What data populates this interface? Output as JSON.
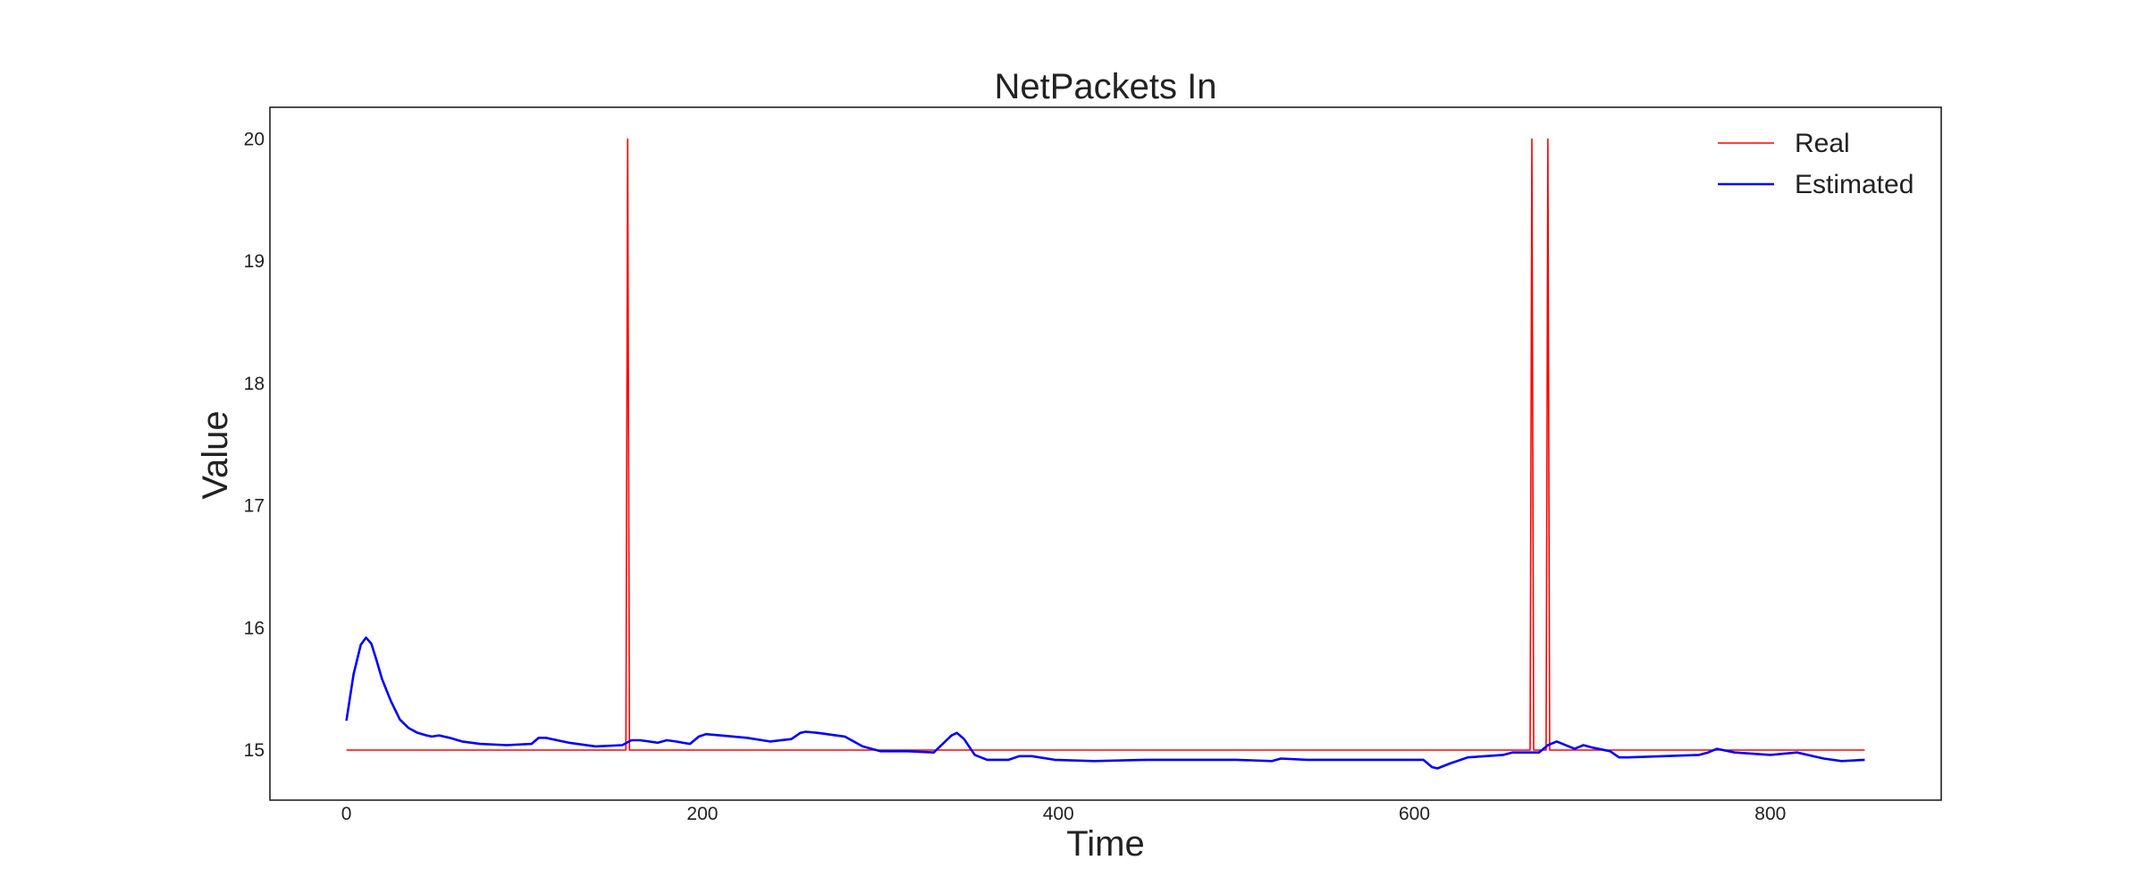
{
  "chart_data": {
    "type": "line",
    "title": "NetPackets In",
    "xlabel": "Time",
    "ylabel": "Value",
    "xlim": [
      -43,
      896
    ],
    "ylim": [
      14.59,
      20.26
    ],
    "xticks": [
      0,
      200,
      400,
      600,
      800
    ],
    "yticks": [
      15,
      16,
      17,
      18,
      19,
      20
    ],
    "grid": false,
    "legend_position": "top-right",
    "series": [
      {
        "name": "Real",
        "color": "#ff0000",
        "x": [
          0,
          157,
          158,
          159,
          665,
          666,
          667,
          674,
          675,
          676,
          853
        ],
        "y": [
          15,
          15,
          20,
          15,
          15,
          20,
          15,
          15,
          20,
          15,
          15
        ]
      },
      {
        "name": "Estimated",
        "color": "#0000ff",
        "x": [
          0,
          4,
          8,
          11,
          14,
          17,
          20,
          25,
          30,
          35,
          40,
          45,
          48,
          52,
          58,
          65,
          75,
          90,
          104,
          108,
          112,
          125,
          140,
          155,
          160,
          165,
          175,
          180,
          185,
          193,
          198,
          202,
          210,
          225,
          238,
          250,
          255,
          258,
          265,
          280,
          290,
          300,
          315,
          330,
          335,
          340,
          343,
          347,
          353,
          360,
          372,
          378,
          385,
          398,
          420,
          450,
          480,
          500,
          520,
          525,
          540,
          570,
          590,
          605,
          610,
          613,
          620,
          630,
          650,
          655,
          665,
          670,
          675,
          680,
          690,
          695,
          700,
          710,
          715,
          720,
          760,
          765,
          770,
          780,
          800,
          815,
          830,
          840,
          853
        ],
        "y": [
          15.24,
          15.62,
          15.86,
          15.92,
          15.87,
          15.73,
          15.58,
          15.4,
          15.25,
          15.18,
          15.14,
          15.12,
          15.11,
          15.12,
          15.1,
          15.07,
          15.05,
          15.04,
          15.05,
          15.1,
          15.1,
          15.06,
          15.03,
          15.04,
          15.08,
          15.08,
          15.06,
          15.08,
          15.07,
          15.05,
          15.11,
          15.13,
          15.12,
          15.1,
          15.07,
          15.09,
          15.14,
          15.15,
          15.14,
          15.11,
          15.03,
          14.99,
          14.99,
          14.98,
          15.05,
          15.12,
          15.14,
          15.09,
          14.96,
          14.92,
          14.92,
          14.95,
          14.95,
          14.92,
          14.91,
          14.92,
          14.92,
          14.92,
          14.91,
          14.93,
          14.92,
          14.92,
          14.92,
          14.92,
          14.86,
          14.85,
          14.89,
          14.94,
          14.96,
          14.98,
          14.98,
          14.98,
          15.04,
          15.07,
          15.01,
          15.04,
          15.02,
          14.99,
          14.94,
          14.94,
          14.96,
          14.98,
          15.01,
          14.98,
          14.96,
          14.98,
          14.93,
          14.91,
          14.92
        ]
      }
    ]
  }
}
